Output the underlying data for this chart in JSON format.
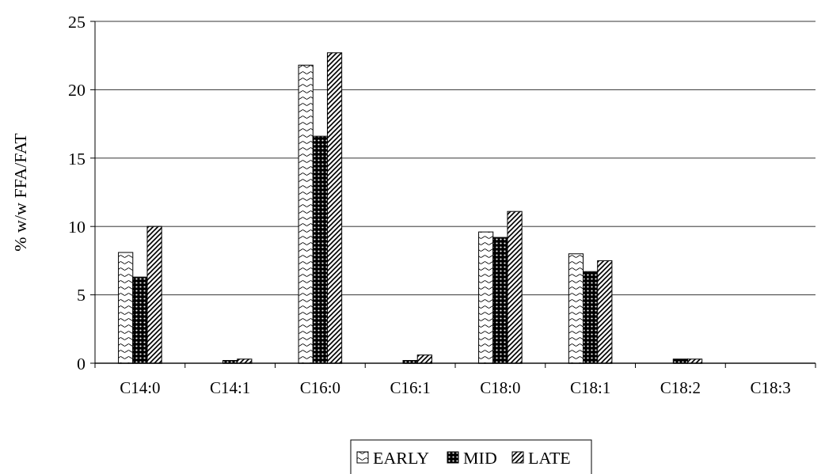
{
  "chart_data": {
    "type": "bar",
    "ylabel": "% w/w FFA/FAT",
    "categories": [
      "C14:0",
      "C14:1",
      "C16:0",
      "C16:1",
      "C18:0",
      "C18:1",
      "C18:2",
      "C18:3"
    ],
    "series": [
      {
        "name": "EARLY",
        "color": "#000000",
        "values": [
          8.1,
          0,
          21.8,
          0,
          9.6,
          8.0,
          0,
          0
        ]
      },
      {
        "name": "MID",
        "color": "#000000",
        "values": [
          6.3,
          0.2,
          16.6,
          0.2,
          9.2,
          6.7,
          0.3,
          0
        ]
      },
      {
        "name": "LATE",
        "color": "#000000",
        "values": [
          10.0,
          0.3,
          22.7,
          0.6,
          11.1,
          7.5,
          0.3,
          0
        ]
      }
    ],
    "ylim": [
      0,
      25
    ],
    "yticks": [
      0,
      5,
      10,
      15,
      20,
      25
    ],
    "grid": "y",
    "legend": "bottom"
  }
}
